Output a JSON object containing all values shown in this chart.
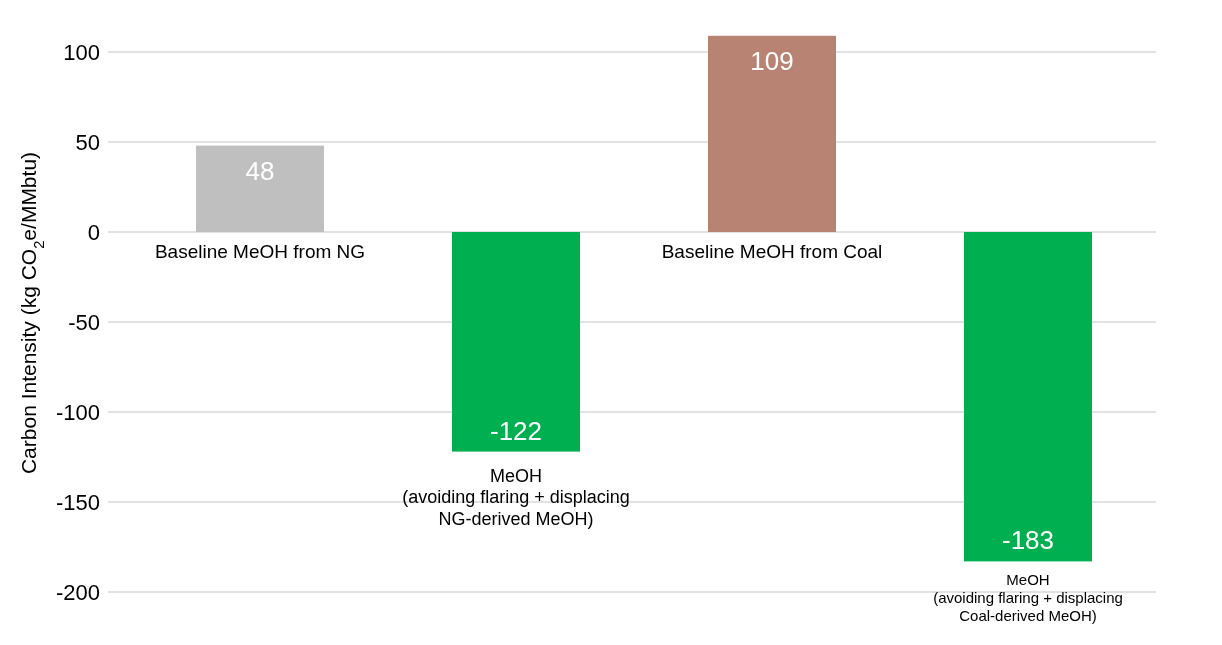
{
  "chart_data": {
    "type": "bar",
    "ylabel": "Carbon Intensity (kg CO$_{2}$e/MMbtu)",
    "categories": [
      "Baseline MeOH from NG",
      "MeOH\n(avoiding flaring + displacing\nNG-derived MeOH)",
      "Baseline MeOH from Coal",
      "MeOH\n(avoiding flaring + displacing\nCoal-derived MeOH)"
    ],
    "values": [
      48,
      -122,
      109,
      -183
    ],
    "colors": [
      "#bfbfbf",
      "#00b050",
      "#b88372",
      "#00b050"
    ],
    "ylim": [
      -200,
      110
    ],
    "yticks": [
      -200,
      -150,
      -100,
      -50,
      0,
      50,
      100
    ],
    "grid": "y",
    "data_labels": true
  }
}
